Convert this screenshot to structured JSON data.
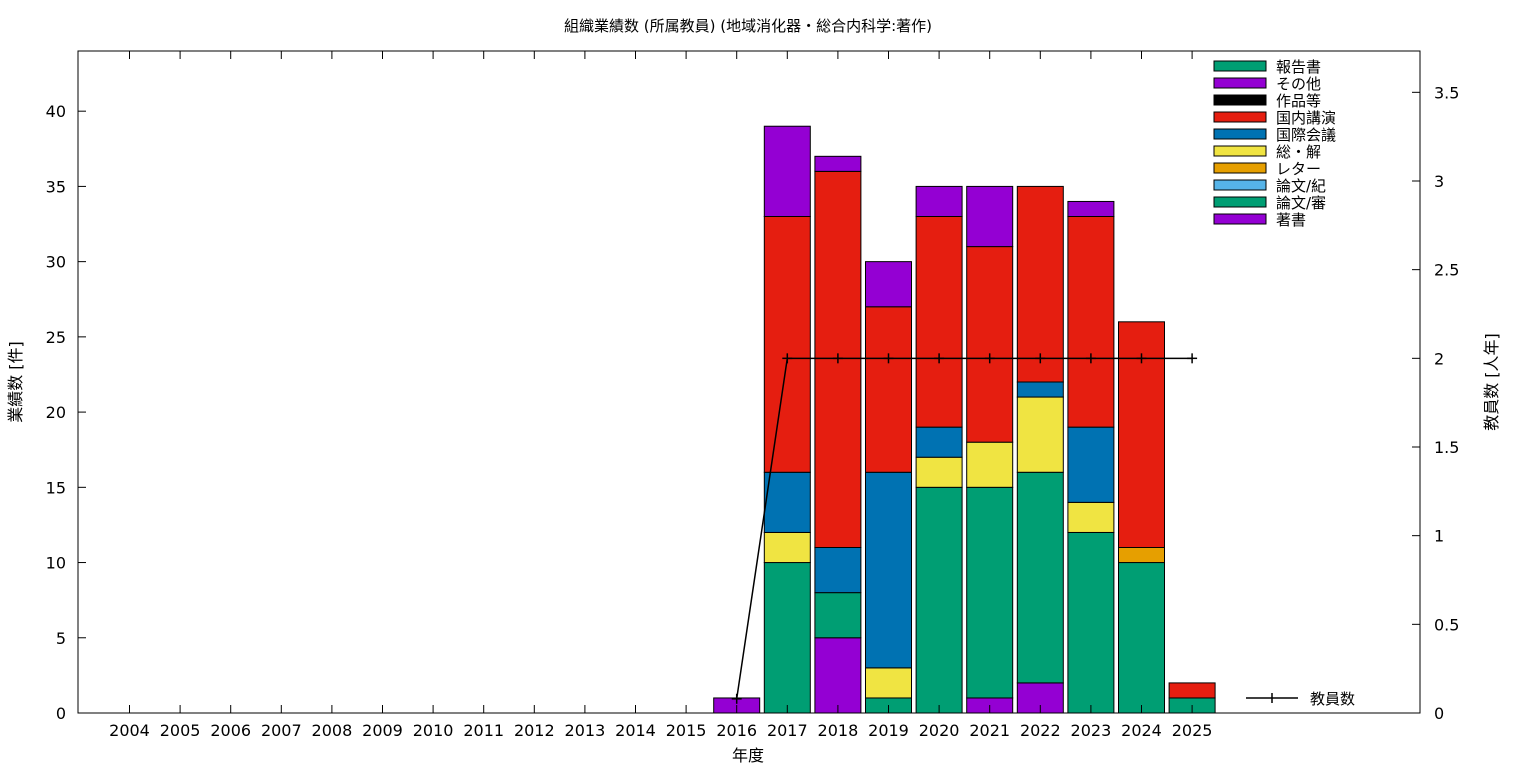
{
  "chart_data": {
    "type": "bar",
    "stacked": true,
    "title": "組織業績数 (所属教員) (地域消化器・総合内科学:著作)",
    "xlabel": "年度",
    "ylabel": "業績数 [件]",
    "y2label": "教員数 [人年]",
    "categories": [
      "2004",
      "2005",
      "2006",
      "2007",
      "2008",
      "2009",
      "2010",
      "2011",
      "2012",
      "2013",
      "2014",
      "2015",
      "2016",
      "2017",
      "2018",
      "2019",
      "2020",
      "2021",
      "2022",
      "2023",
      "2024",
      "2025"
    ],
    "ylim": [
      0,
      44
    ],
    "y_ticks": [
      0,
      5,
      10,
      15,
      20,
      25,
      30,
      35,
      40
    ],
    "y2lim": [
      0,
      3.733
    ],
    "y2_ticks": [
      0,
      0.5,
      1,
      1.5,
      2,
      2.5,
      3,
      3.5
    ],
    "grid": false,
    "legend_position": "top-right",
    "series": [
      {
        "name": "著書",
        "color": "#9400d3",
        "values": [
          0,
          0,
          0,
          0,
          0,
          0,
          0,
          0,
          0,
          0,
          0,
          0,
          1,
          0,
          5,
          0,
          0,
          1,
          2,
          0,
          0,
          0
        ]
      },
      {
        "name": "論文/審",
        "color": "#009e73",
        "values": [
          0,
          0,
          0,
          0,
          0,
          0,
          0,
          0,
          0,
          0,
          0,
          0,
          0,
          10,
          3,
          1,
          15,
          14,
          14,
          12,
          10,
          1
        ]
      },
      {
        "name": "論文/紀",
        "color": "#56b4e9",
        "values": [
          0,
          0,
          0,
          0,
          0,
          0,
          0,
          0,
          0,
          0,
          0,
          0,
          0,
          0,
          0,
          0,
          0,
          0,
          0,
          0,
          0,
          0
        ]
      },
      {
        "name": "レター",
        "color": "#e69f00",
        "values": [
          0,
          0,
          0,
          0,
          0,
          0,
          0,
          0,
          0,
          0,
          0,
          0,
          0,
          0,
          0,
          0,
          0,
          0,
          0,
          0,
          1,
          0
        ]
      },
      {
        "name": "総・解",
        "color": "#f0e442",
        "values": [
          0,
          0,
          0,
          0,
          0,
          0,
          0,
          0,
          0,
          0,
          0,
          0,
          0,
          2,
          0,
          2,
          2,
          3,
          5,
          2,
          0,
          0
        ]
      },
      {
        "name": "国際会議",
        "color": "#0072b2",
        "values": [
          0,
          0,
          0,
          0,
          0,
          0,
          0,
          0,
          0,
          0,
          0,
          0,
          0,
          4,
          3,
          13,
          2,
          0,
          1,
          5,
          0,
          0
        ]
      },
      {
        "name": "国内講演",
        "color": "#e51e10",
        "values": [
          0,
          0,
          0,
          0,
          0,
          0,
          0,
          0,
          0,
          0,
          0,
          0,
          0,
          17,
          25,
          11,
          14,
          13,
          13,
          14,
          15,
          1
        ]
      },
      {
        "name": "作品等",
        "color": "#000000",
        "values": [
          0,
          0,
          0,
          0,
          0,
          0,
          0,
          0,
          0,
          0,
          0,
          0,
          0,
          0,
          0,
          0,
          0,
          0,
          0,
          0,
          0,
          0
        ]
      },
      {
        "name": "その他",
        "color": "#9400d3",
        "values": [
          0,
          0,
          0,
          0,
          0,
          0,
          0,
          0,
          0,
          0,
          0,
          0,
          0,
          6,
          1,
          3,
          2,
          4,
          0,
          1,
          0,
          0
        ]
      },
      {
        "name": "報告書",
        "color": "#009e73",
        "values": [
          0,
          0,
          0,
          0,
          0,
          0,
          0,
          0,
          0,
          0,
          0,
          0,
          0,
          0,
          0,
          0,
          0,
          0,
          0,
          0,
          0,
          0
        ]
      }
    ],
    "line_series": {
      "name": "教員数",
      "color": "#000000",
      "axis": "y2",
      "x": [
        "2016",
        "2017",
        "2018",
        "2019",
        "2020",
        "2021",
        "2022",
        "2023",
        "2024",
        "2025"
      ],
      "values": [
        0.08,
        2,
        2,
        2,
        2,
        2,
        2,
        2,
        2,
        2
      ]
    }
  }
}
